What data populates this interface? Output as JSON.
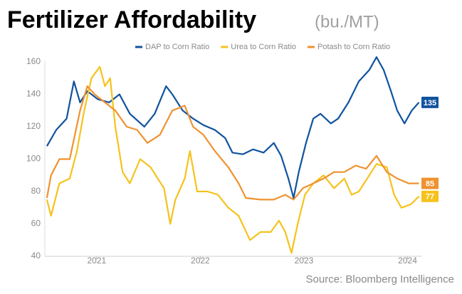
{
  "chart_data": {
    "type": "line",
    "title": "Fertilizer Affordability",
    "subtitle": "(bu./MT)",
    "source": "Source: Bloomberg Intelligence",
    "xlim": [
      2020.5,
      2024.12
    ],
    "xticks": [
      2021,
      2022,
      2023,
      2024
    ],
    "ylim": [
      40,
      160
    ],
    "yticks": [
      40,
      60,
      80,
      100,
      120,
      140,
      160
    ],
    "grid": false,
    "legend": "top",
    "series": [
      {
        "name": "DAP to Corn Ratio",
        "color": "#10539e",
        "x": [
          2020.52,
          2020.61,
          2020.71,
          2020.78,
          2020.84,
          2020.91,
          2021.01,
          2021.12,
          2021.22,
          2021.32,
          2021.46,
          2021.56,
          2021.67,
          2021.73,
          2021.83,
          2021.93,
          2022.03,
          2022.14,
          2022.24,
          2022.31,
          2022.41,
          2022.51,
          2022.61,
          2022.71,
          2022.78,
          2022.85,
          2022.9,
          2022.95,
          2023.02,
          2023.09,
          2023.16,
          2023.26,
          2023.33,
          2023.43,
          2023.53,
          2023.63,
          2023.7,
          2023.77,
          2023.84,
          2023.9,
          2023.97,
          2024.04,
          2024.11
        ],
        "values": [
          108,
          118,
          125,
          148,
          135,
          142,
          137,
          135,
          140,
          128,
          120,
          128,
          145,
          140,
          130,
          125,
          121,
          118,
          113,
          104,
          103,
          106,
          104,
          110,
          102,
          88,
          76,
          92,
          110,
          125,
          128,
          122,
          125,
          135,
          148,
          155,
          163,
          155,
          142,
          130,
          122,
          130,
          135
        ]
      },
      {
        "name": "Urea to Corn Ratio",
        "color": "#f6c21c",
        "x": [
          2020.52,
          2020.56,
          2020.64,
          2020.74,
          2020.81,
          2020.88,
          2020.95,
          2021.03,
          2021.08,
          2021.13,
          2021.18,
          2021.25,
          2021.32,
          2021.42,
          2021.52,
          2021.65,
          2021.71,
          2021.76,
          2021.85,
          2021.9,
          2021.97,
          2022.07,
          2022.17,
          2022.27,
          2022.37,
          2022.48,
          2022.58,
          2022.68,
          2022.76,
          2022.82,
          2022.88,
          2022.94,
          2023.01,
          2023.09,
          2023.19,
          2023.29,
          2023.39,
          2023.46,
          2023.53,
          2023.63,
          2023.7,
          2023.8,
          2023.87,
          2023.94,
          2024.03,
          2024.11
        ],
        "values": [
          75,
          65,
          85,
          88,
          105,
          130,
          150,
          157,
          145,
          150,
          120,
          92,
          85,
          100,
          95,
          82,
          60,
          75,
          88,
          105,
          80,
          80,
          78,
          70,
          65,
          50,
          55,
          55,
          62,
          55,
          42,
          60,
          78,
          85,
          90,
          82,
          88,
          78,
          80,
          90,
          97,
          95,
          78,
          70,
          72,
          77
        ]
      },
      {
        "name": "Potash to Corn Ratio",
        "color": "#ef922f",
        "x": [
          2020.52,
          2020.56,
          2020.64,
          2020.74,
          2020.84,
          2020.91,
          2020.98,
          2021.08,
          2021.18,
          2021.29,
          2021.39,
          2021.49,
          2021.61,
          2021.73,
          2021.85,
          2021.93,
          2022.03,
          2022.14,
          2022.27,
          2022.37,
          2022.44,
          2022.58,
          2022.71,
          2022.82,
          2022.9,
          2022.99,
          2023.09,
          2023.19,
          2023.29,
          2023.39,
          2023.5,
          2023.6,
          2023.7,
          2023.8,
          2023.9,
          2024.01,
          2024.11
        ],
        "values": [
          76,
          90,
          100,
          100,
          130,
          145,
          140,
          135,
          130,
          120,
          118,
          110,
          115,
          130,
          133,
          120,
          115,
          105,
          95,
          85,
          76,
          75,
          75,
          78,
          75,
          82,
          85,
          88,
          92,
          92,
          96,
          94,
          102,
          92,
          88,
          85,
          85
        ]
      }
    ]
  }
}
